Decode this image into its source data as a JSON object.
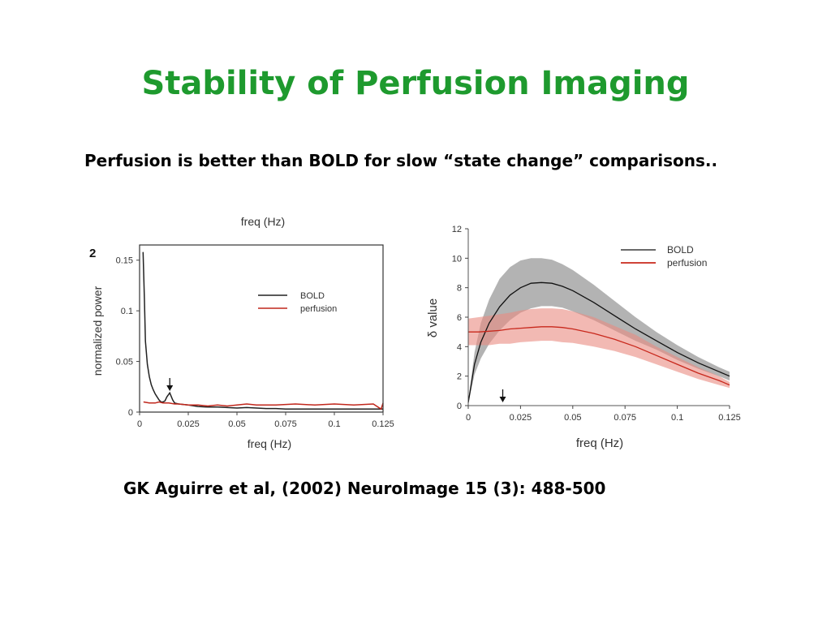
{
  "slide": {
    "title": "Stability of Perfusion Imaging",
    "subtitle": "Perfusion is better than BOLD for slow “state change” comparisons..",
    "citation": "GK Aguirre et al, (2002) NeuroImage 15 (3): 488-500"
  },
  "chart_data": [
    {
      "type": "line",
      "panel_label": "2",
      "top_label": "freq (Hz)",
      "xlabel": "freq (Hz)",
      "ylabel": "normalized power",
      "xlim": [
        0,
        0.125
      ],
      "ylim": [
        0,
        0.165
      ],
      "xticks": [
        "0",
        "0.025",
        "0.05",
        "0.075",
        "0.1",
        "0.125"
      ],
      "xtick_values": [
        0,
        0.025,
        0.05,
        0.075,
        0.1,
        0.125
      ],
      "yticks": [
        "0",
        "0.05",
        "0.1",
        "0.15"
      ],
      "ytick_values": [
        0,
        0.05,
        0.1,
        0.15
      ],
      "legend_position": "center-right",
      "arrow_x": 0.0155,
      "series": [
        {
          "name": "BOLD",
          "color": "#222222",
          "x": [
            0.0018,
            0.0025,
            0.003,
            0.004,
            0.005,
            0.006,
            0.007,
            0.008,
            0.009,
            0.01,
            0.011,
            0.012,
            0.013,
            0.014,
            0.0155,
            0.017,
            0.018,
            0.02,
            0.025,
            0.03,
            0.035,
            0.04,
            0.045,
            0.05,
            0.055,
            0.06,
            0.065,
            0.07,
            0.075,
            0.08,
            0.09,
            0.1,
            0.11,
            0.12,
            0.125
          ],
          "y": [
            0.158,
            0.11,
            0.07,
            0.047,
            0.035,
            0.027,
            0.022,
            0.018,
            0.015,
            0.012,
            0.01,
            0.01,
            0.011,
            0.015,
            0.019,
            0.012,
            0.009,
            0.008,
            0.007,
            0.0055,
            0.005,
            0.005,
            0.0045,
            0.004,
            0.0045,
            0.004,
            0.0035,
            0.0035,
            0.003,
            0.003,
            0.003,
            0.003,
            0.003,
            0.003,
            0.003
          ]
        },
        {
          "name": "perfusion",
          "color": "#c0271c",
          "x": [
            0.002,
            0.005,
            0.008,
            0.01,
            0.012,
            0.015,
            0.018,
            0.02,
            0.025,
            0.03,
            0.035,
            0.04,
            0.045,
            0.05,
            0.055,
            0.06,
            0.07,
            0.08,
            0.09,
            0.1,
            0.11,
            0.12,
            0.124,
            0.125
          ],
          "y": [
            0.01,
            0.009,
            0.009,
            0.01,
            0.009,
            0.009,
            0.008,
            0.008,
            0.007,
            0.007,
            0.006,
            0.007,
            0.006,
            0.007,
            0.008,
            0.007,
            0.007,
            0.008,
            0.007,
            0.008,
            0.007,
            0.008,
            0.003,
            0.009
          ]
        }
      ]
    },
    {
      "type": "area",
      "xlabel": "freq (Hz)",
      "ylabel": "δ value",
      "xlim": [
        0,
        0.125
      ],
      "ylim": [
        0,
        12
      ],
      "xticks": [
        "0",
        "0.025",
        "0.05",
        "0.075",
        "0.1",
        "0.125"
      ],
      "xtick_values": [
        0,
        0.025,
        0.05,
        0.075,
        0.1,
        0.125
      ],
      "yticks": [
        "0",
        "2",
        "4",
        "6",
        "8",
        "10",
        "12"
      ],
      "ytick_values": [
        0,
        2,
        4,
        6,
        8,
        10,
        12
      ],
      "legend_position": "top-right",
      "arrow_x": 0.0165,
      "series": [
        {
          "name": "BOLD",
          "color": "#111111",
          "band_color": "#9a9a9a",
          "x": [
            0,
            0.003,
            0.006,
            0.01,
            0.015,
            0.02,
            0.025,
            0.03,
            0.035,
            0.04,
            0.045,
            0.05,
            0.06,
            0.07,
            0.08,
            0.09,
            0.1,
            0.11,
            0.12,
            0.125
          ],
          "y": [
            0.2,
            2.8,
            4.3,
            5.6,
            6.7,
            7.5,
            8.0,
            8.3,
            8.35,
            8.3,
            8.1,
            7.8,
            7.0,
            6.1,
            5.2,
            4.4,
            3.6,
            2.9,
            2.3,
            2.0
          ],
          "upper": [
            0.3,
            3.6,
            5.6,
            7.2,
            8.6,
            9.4,
            9.85,
            10.0,
            10.0,
            9.9,
            9.6,
            9.2,
            8.2,
            7.1,
            6.0,
            5.0,
            4.1,
            3.3,
            2.6,
            2.3
          ],
          "lower": [
            0.1,
            2.1,
            3.2,
            4.2,
            5.1,
            5.8,
            6.3,
            6.6,
            6.75,
            6.75,
            6.65,
            6.4,
            5.8,
            5.1,
            4.4,
            3.8,
            3.1,
            2.5,
            2.0,
            1.7
          ]
        },
        {
          "name": "perfusion",
          "color": "#c8281c",
          "band_color": "#e98a80",
          "x": [
            0,
            0.005,
            0.01,
            0.015,
            0.02,
            0.025,
            0.03,
            0.035,
            0.04,
            0.045,
            0.05,
            0.06,
            0.07,
            0.08,
            0.09,
            0.1,
            0.11,
            0.12,
            0.125
          ],
          "y": [
            5.0,
            5.0,
            5.05,
            5.1,
            5.2,
            5.25,
            5.3,
            5.35,
            5.35,
            5.3,
            5.2,
            4.9,
            4.5,
            4.0,
            3.4,
            2.8,
            2.2,
            1.7,
            1.4
          ],
          "upper": [
            5.9,
            6.0,
            6.1,
            6.2,
            6.3,
            6.45,
            6.55,
            6.6,
            6.6,
            6.55,
            6.4,
            6.0,
            5.4,
            4.8,
            4.0,
            3.3,
            2.6,
            2.0,
            1.6
          ],
          "lower": [
            4.1,
            4.1,
            4.1,
            4.2,
            4.2,
            4.3,
            4.35,
            4.4,
            4.4,
            4.3,
            4.25,
            4.0,
            3.7,
            3.3,
            2.8,
            2.3,
            1.8,
            1.4,
            1.2
          ]
        }
      ]
    }
  ]
}
